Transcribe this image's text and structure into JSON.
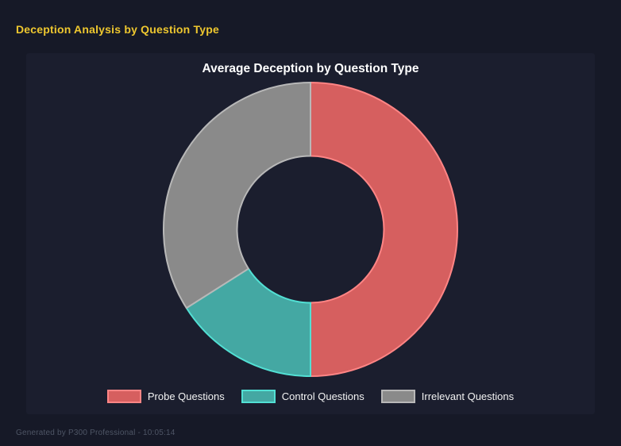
{
  "page": {
    "title": "Deception Analysis by Question Type",
    "footer": "Generated by P300 Professional - 10:05:14",
    "background_color": "#161927",
    "title_color": "#eec72f",
    "footer_color": "#4e5565"
  },
  "panel": {
    "background_color": "#1b1e2e"
  },
  "chart_data": {
    "type": "pie",
    "donut": true,
    "title": "Average Deception by Question Type",
    "categories": [
      "Probe Questions",
      "Control Questions",
      "Irrelevant Questions"
    ],
    "values": [
      50,
      16,
      34
    ],
    "colors": [
      "#d65f5f",
      "#44a8a3",
      "#8a8a8a"
    ],
    "border_colors": [
      "#ff8585",
      "#52e0d4",
      "#b8b8b8"
    ],
    "start_angle": "top",
    "direction": "clockwise",
    "inner_radius_ratio": 0.5,
    "legend_position": "bottom",
    "title_color": "#ffffff",
    "legend_text_color": "#f2f2f2"
  }
}
